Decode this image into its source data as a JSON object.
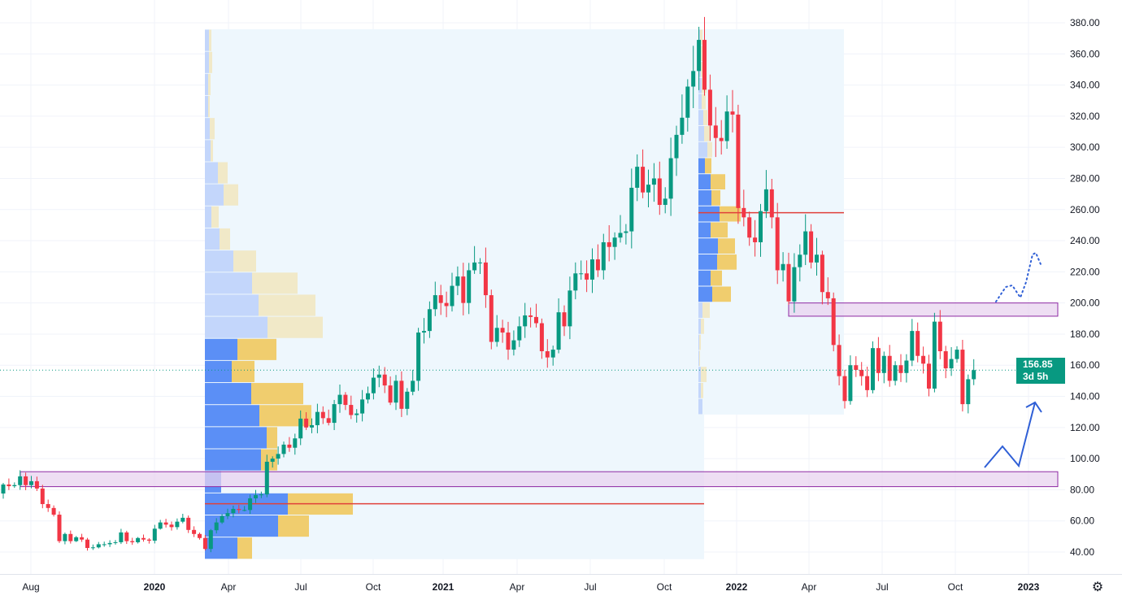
{
  "colors": {
    "up": "#089981",
    "down": "#f23645",
    "vp_up": "#5b8ff6",
    "vp_down": "#f0cd6e",
    "vp_up_faded": "#c3d6fb",
    "vp_down_faded": "#f1e9c8",
    "poc": "#e0403a",
    "zone_fill": "#e8d3ef",
    "zone_stroke": "#8e2aa3",
    "arrow": "#2f5fd6",
    "vp_bg": "#eef7fd"
  },
  "price_badge": {
    "price": "156.85",
    "countdown": "3d 5h"
  },
  "settings_icon": "gear-icon",
  "chart_data": {
    "type": "candlestick",
    "interval": "weekly",
    "ylim": [
      40,
      380
    ],
    "y_ticks": [
      "380.00",
      "360.00",
      "340.00",
      "320.00",
      "300.00",
      "280.00",
      "260.00",
      "240.00",
      "220.00",
      "200.00",
      "180.00",
      "160.00",
      "140.00",
      "120.00",
      "100.00",
      "80.00",
      "60.00",
      "40.00"
    ],
    "x_ticks": [
      "Aug",
      "2020",
      "Apr",
      "Jul",
      "Oct",
      "2021",
      "Apr",
      "Jul",
      "Oct",
      "2022",
      "Apr",
      "Jul",
      "Oct",
      "2023"
    ],
    "first_open": 77.6,
    "closes": [
      83.4,
      82.3,
      83,
      88.6,
      83,
      85.5,
      80.8,
      70.8,
      68.3,
      64,
      47,
      51.6,
      47,
      49.5,
      48,
      42.6,
      43,
      45,
      45,
      45.8,
      46.3,
      52.6,
      47,
      46.3,
      49,
      48,
      47.3,
      55,
      59,
      57.6,
      56,
      59.5,
      62,
      54.2,
      51.6,
      49,
      42,
      54,
      59,
      63,
      65,
      67.7,
      67,
      67,
      74.5,
      76.6,
      77,
      98,
      100,
      103,
      109,
      107,
      113,
      125.7,
      120,
      121.5,
      130,
      126,
      123,
      135,
      141,
      134.5,
      128,
      129,
      138,
      142,
      152,
      154,
      147,
      136,
      150,
      132,
      143,
      150,
      181,
      182,
      196,
      205,
      200,
      198,
      211,
      217,
      200,
      221,
      226,
      226,
      205,
      175,
      184,
      181,
      170,
      176,
      185,
      192,
      191,
      187,
      169,
      165,
      170,
      194,
      185,
      208,
      219,
      219,
      215,
      228,
      221,
      239,
      236,
      242,
      245,
      246,
      274,
      287.5,
      271,
      276,
      280,
      263,
      267,
      293,
      308,
      319,
      339,
      349,
      369,
      337,
      314,
      306,
      304,
      323,
      321,
      261,
      255,
      242,
      239,
      259,
      273,
      255,
      221,
      225,
      201,
      223,
      231,
      246,
      226,
      231,
      207,
      203,
      173,
      153,
      137,
      160,
      157,
      153,
      144,
      171,
      155,
      166,
      150,
      160,
      155,
      163,
      182,
      166,
      161,
      145,
      188,
      169,
      158,
      164,
      170,
      135,
      151,
      156.85
    ],
    "last_price": 156.85,
    "volume_profiles": [
      {
        "name": "vp-2020-2021",
        "price_high": 375.8,
        "price_low": 35.4,
        "poc_price": 71,
        "value_area_rows": [
          14,
          23
        ],
        "rows": [
          [
            5,
            3
          ],
          [
            5,
            4
          ],
          [
            4,
            3
          ],
          [
            4,
            2
          ],
          [
            6,
            6
          ],
          [
            7,
            3
          ],
          [
            16,
            12
          ],
          [
            23,
            18
          ],
          [
            8,
            9
          ],
          [
            18,
            13
          ],
          [
            35,
            28
          ],
          [
            58,
            56
          ],
          [
            66,
            70
          ],
          [
            77,
            68
          ],
          [
            40,
            48
          ],
          [
            33,
            28
          ],
          [
            57,
            64
          ],
          [
            67,
            64
          ],
          [
            76,
            13
          ],
          [
            69,
            20
          ],
          [
            20,
            0
          ],
          [
            102,
            80
          ],
          [
            90,
            38
          ],
          [
            40,
            18
          ]
        ]
      },
      {
        "name": "vp-2021-2022",
        "price_high": 375.8,
        "price_low": 128.3,
        "poc_price": 258,
        "value_area_rows": [
          8,
          16
        ],
        "rows": [
          [
            2,
            3
          ],
          [
            2,
            3
          ],
          [
            3,
            4
          ],
          [
            4,
            6
          ],
          [
            4,
            5
          ],
          [
            6,
            5
          ],
          [
            7,
            8
          ],
          [
            11,
            6
          ],
          [
            8,
            8
          ],
          [
            15,
            18
          ],
          [
            16,
            11
          ],
          [
            26,
            26
          ],
          [
            15,
            21
          ],
          [
            24,
            21
          ],
          [
            23,
            24
          ],
          [
            15,
            14
          ],
          [
            17,
            23
          ],
          [
            5,
            9
          ],
          [
            3,
            4
          ],
          [
            1,
            2
          ],
          [
            1,
            1
          ],
          [
            3,
            7
          ],
          [
            3,
            3
          ],
          [
            5,
            0
          ]
        ]
      }
    ],
    "zones": [
      {
        "name": "resistance-zone",
        "top": 200,
        "bottom": 191.5
      },
      {
        "name": "support-zone",
        "top": 91.6,
        "bottom": 82
      }
    ],
    "grid": true
  }
}
